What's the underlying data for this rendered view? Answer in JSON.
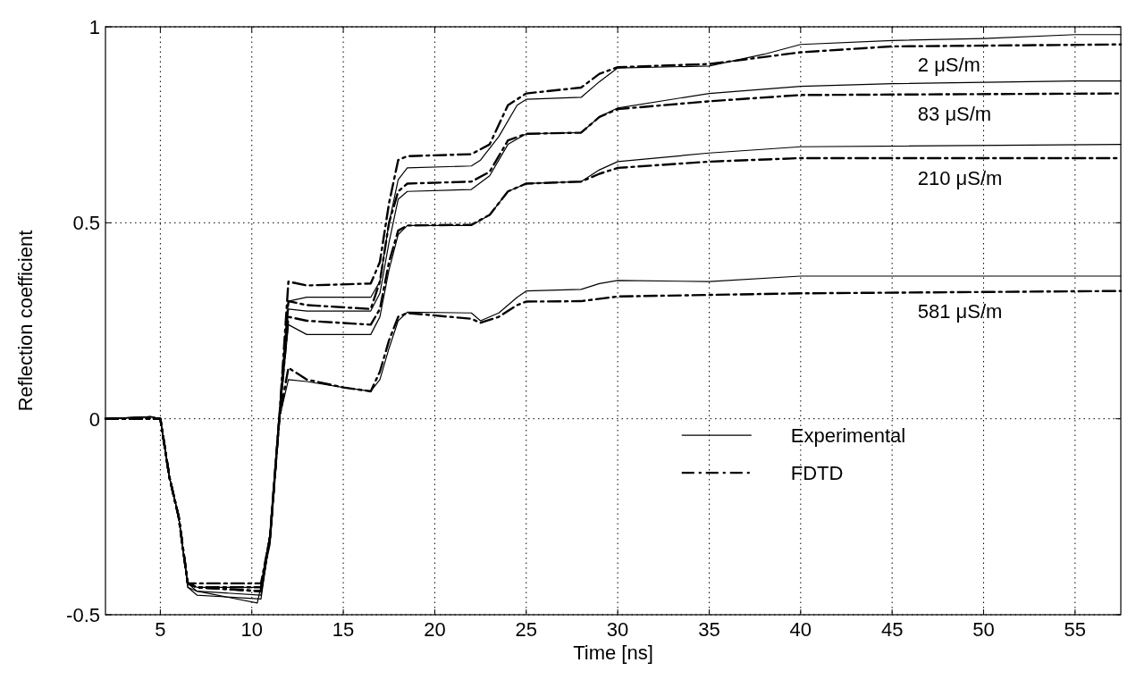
{
  "chart_data": {
    "type": "line",
    "xlabel": "Time [ns]",
    "ylabel": "Reflection coefficient",
    "xlim": [
      2,
      57.5
    ],
    "ylim": [
      -0.5,
      1
    ],
    "xticks": [
      5,
      10,
      15,
      20,
      25,
      30,
      35,
      40,
      45,
      50,
      55
    ],
    "yticks": [
      -0.5,
      0,
      0.5,
      1
    ],
    "grid": true,
    "legend": "bottom right",
    "marker": "none",
    "series": [
      {
        "name": "Experimental",
        "color": "#000000",
        "line_style": "solid",
        "x": [
          2,
          4.5,
          5,
          5.5,
          6,
          6.5,
          7,
          10.5,
          11,
          11.5,
          12,
          13,
          16.5,
          17,
          17.5,
          18,
          18.5,
          22,
          22.5,
          23.5,
          24.5,
          25,
          28,
          29,
          30,
          35,
          38,
          40,
          45,
          50,
          55,
          57.5
        ],
        "values": [
          0,
          0.005,
          0,
          -0.15,
          -0.25,
          -0.42,
          -0.43,
          -0.43,
          -0.3,
          0,
          0.3,
          0.31,
          0.31,
          0.35,
          0.5,
          0.61,
          0.64,
          0.645,
          0.66,
          0.72,
          0.8,
          0.815,
          0.82,
          0.86,
          0.895,
          0.9,
          0.93,
          0.955,
          0.965,
          0.97,
          0.98,
          0.98
        ]
      },
      {
        "color": "#000000",
        "line_style": "solid",
        "x": [
          2,
          4.5,
          5,
          5.5,
          6,
          6.5,
          7,
          10.5,
          11,
          11.5,
          12,
          13,
          16.5,
          17,
          17.5,
          18,
          18.5,
          22,
          23,
          24,
          25,
          28,
          29,
          30,
          35,
          40,
          45,
          55,
          57.5
        ],
        "values": [
          0,
          0.005,
          0,
          -0.15,
          -0.25,
          -0.42,
          -0.44,
          -0.45,
          -0.3,
          0,
          0.28,
          0.275,
          0.275,
          0.32,
          0.45,
          0.56,
          0.58,
          0.585,
          0.62,
          0.7,
          0.727,
          0.73,
          0.77,
          0.793,
          0.83,
          0.848,
          0.855,
          0.862,
          0.862
        ]
      },
      {
        "color": "#000000",
        "line_style": "solid",
        "x": [
          2,
          4.5,
          5,
          5.5,
          6,
          6.5,
          7,
          10.5,
          11,
          11.5,
          12,
          13,
          16.5,
          17,
          17.5,
          18,
          18.5,
          22,
          23,
          24,
          25,
          28,
          29,
          30,
          35,
          40,
          57.5
        ],
        "values": [
          0,
          0.005,
          0,
          -0.15,
          -0.25,
          -0.43,
          -0.45,
          -0.46,
          -0.3,
          0,
          0.24,
          0.215,
          0.215,
          0.26,
          0.38,
          0.47,
          0.493,
          0.493,
          0.52,
          0.58,
          0.6,
          0.605,
          0.635,
          0.656,
          0.678,
          0.694,
          0.7
        ]
      },
      {
        "color": "#000000",
        "line_style": "solid",
        "x": [
          2,
          4.5,
          5,
          5.5,
          6,
          6.5,
          7,
          10.3,
          11,
          11.5,
          12,
          13,
          15,
          16.5,
          17,
          17.5,
          18,
          18.5,
          22,
          22.5,
          23.5,
          24.5,
          25,
          28,
          29,
          30,
          35,
          40,
          57.5
        ],
        "values": [
          0,
          0.005,
          0,
          -0.15,
          -0.25,
          -0.43,
          -0.44,
          -0.47,
          -0.32,
          0,
          0.1,
          0.095,
          0.08,
          0.07,
          0.1,
          0.18,
          0.25,
          0.272,
          0.27,
          0.25,
          0.27,
          0.31,
          0.326,
          0.33,
          0.345,
          0.353,
          0.35,
          0.364,
          0.364
        ]
      },
      {
        "name": "FDTD",
        "color": "#000000",
        "line_style": "dashed",
        "x": [
          2,
          5,
          5.5,
          6,
          6.5,
          7,
          10.5,
          11,
          11.5,
          12,
          13,
          16.5,
          17,
          17.5,
          18,
          18.5,
          22,
          23,
          24,
          25,
          28,
          29,
          30,
          35,
          40,
          45,
          57.5
        ],
        "values": [
          0,
          0,
          -0.15,
          -0.25,
          -0.42,
          -0.42,
          -0.42,
          -0.3,
          0,
          0.35,
          0.34,
          0.345,
          0.4,
          0.55,
          0.66,
          0.67,
          0.675,
          0.7,
          0.8,
          0.83,
          0.845,
          0.88,
          0.897,
          0.905,
          0.935,
          0.95,
          0.955
        ]
      },
      {
        "color": "#000000",
        "line_style": "dashed",
        "x": [
          2,
          5,
          5.5,
          6,
          6.5,
          7,
          10.5,
          11,
          11.5,
          12,
          13,
          16.5,
          17,
          17.5,
          18,
          18.5,
          22,
          23,
          24,
          25,
          28,
          29,
          30,
          35,
          40,
          57.5
        ],
        "values": [
          0,
          0,
          -0.15,
          -0.25,
          -0.42,
          -0.43,
          -0.43,
          -0.3,
          0,
          0.3,
          0.29,
          0.28,
          0.35,
          0.5,
          0.58,
          0.6,
          0.605,
          0.63,
          0.71,
          0.727,
          0.73,
          0.77,
          0.79,
          0.81,
          0.826,
          0.83
        ]
      },
      {
        "color": "#000000",
        "line_style": "dashed",
        "x": [
          2,
          5,
          5.5,
          6,
          6.5,
          7,
          10.5,
          11,
          11.5,
          12,
          13,
          16.5,
          17,
          17.5,
          18,
          18.5,
          22,
          23,
          24,
          25,
          28,
          29,
          30,
          35,
          40,
          57.5
        ],
        "values": [
          0,
          0,
          -0.15,
          -0.25,
          -0.42,
          -0.43,
          -0.44,
          -0.3,
          0,
          0.26,
          0.25,
          0.24,
          0.28,
          0.4,
          0.48,
          0.493,
          0.495,
          0.52,
          0.58,
          0.6,
          0.605,
          0.625,
          0.64,
          0.656,
          0.665,
          0.665
        ]
      },
      {
        "color": "#000000",
        "line_style": "dashed",
        "x": [
          2,
          5,
          5.5,
          6,
          6.5,
          7,
          10.5,
          11,
          11.5,
          12,
          13,
          15,
          16.5,
          17,
          17.5,
          18,
          18.5,
          22,
          22.5,
          23.5,
          24.5,
          25,
          28,
          30,
          40,
          57.5
        ],
        "values": [
          0,
          0,
          -0.15,
          -0.25,
          -0.42,
          -0.43,
          -0.44,
          -0.3,
          0,
          0.13,
          0.1,
          0.08,
          0.07,
          0.12,
          0.2,
          0.26,
          0.27,
          0.255,
          0.245,
          0.26,
          0.29,
          0.299,
          0.3,
          0.312,
          0.32,
          0.326
        ]
      }
    ],
    "annotations": [
      "2 μS/m",
      "83 μS/m",
      "210 μS/m",
      "581 μS/m"
    ]
  }
}
